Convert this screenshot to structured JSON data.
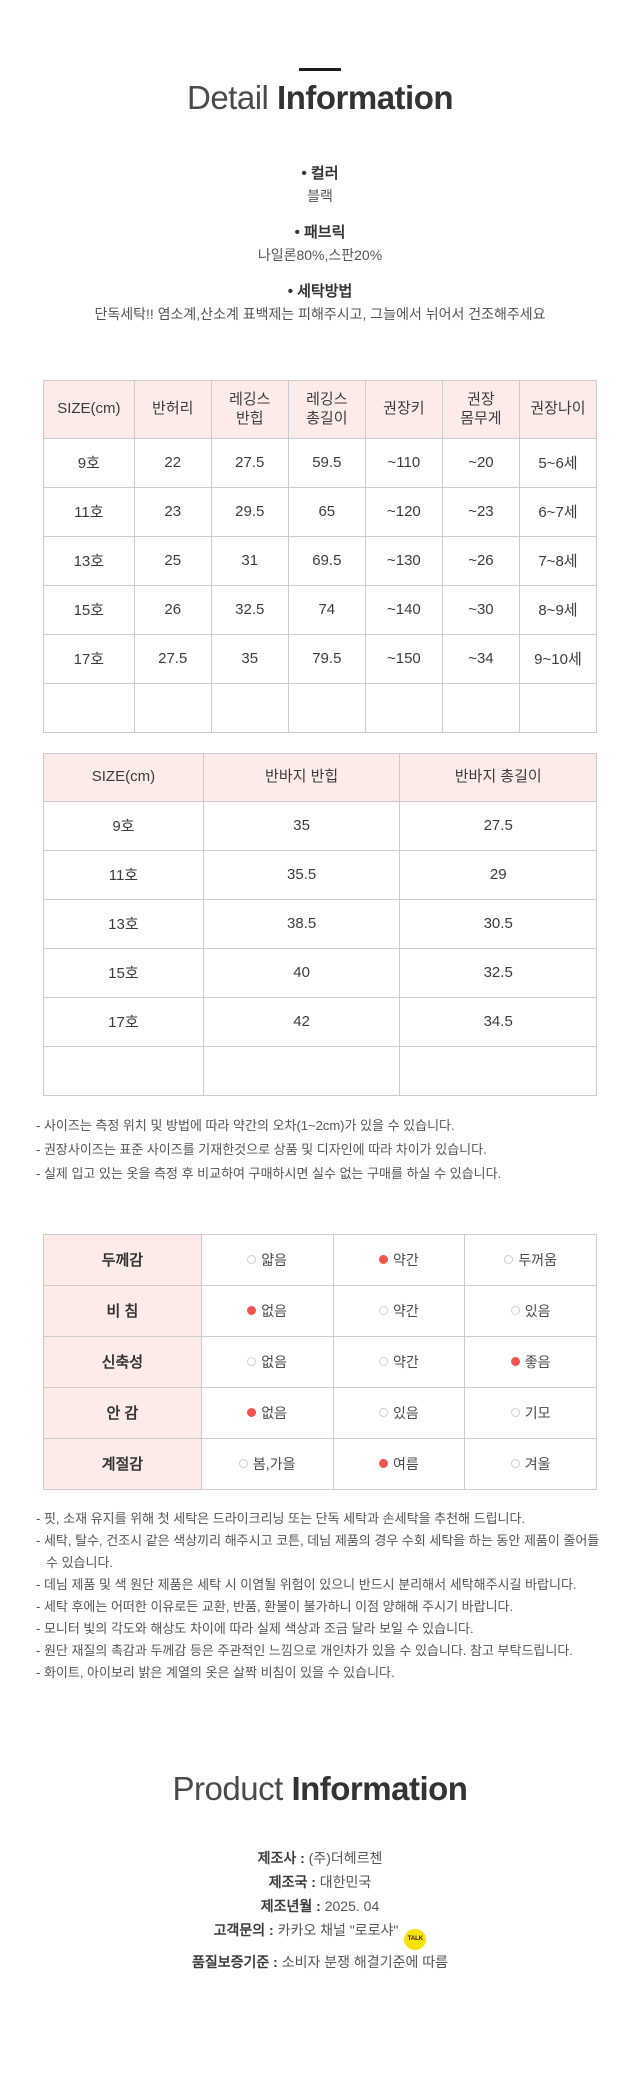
{
  "page": {
    "detail_title": {
      "light": "Detail",
      "bold": "Information"
    },
    "product_title": {
      "light": "Product",
      "bold": "Information"
    }
  },
  "detail_sections": [
    {
      "label": "• 컬러",
      "value": "블랙"
    },
    {
      "label": "• 패브릭",
      "value": "나일론80%,스판20%"
    },
    {
      "label": "• 세탁방법",
      "value": "단독세탁!! 염소계,산소계 표백제는 피해주시고, 그늘에서 뉘어서 건조해주세요"
    }
  ],
  "leggings_size_table": {
    "headers": [
      "SIZE(cm)",
      "반허리",
      "레깅스\n반힙",
      "레깅스\n총길이",
      "권장키",
      "권장\n몸무게",
      "권장나이"
    ],
    "rows": [
      [
        "9호",
        "22",
        "27.5",
        "59.5",
        "~110",
        "~20",
        "5~6세"
      ],
      [
        "11호",
        "23",
        "29.5",
        "65",
        "~120",
        "~23",
        "6~7세"
      ],
      [
        "13호",
        "25",
        "31",
        "69.5",
        "~130",
        "~26",
        "7~8세"
      ],
      [
        "15호",
        "26",
        "32.5",
        "74",
        "~140",
        "~30",
        "8~9세"
      ],
      [
        "17호",
        "27.5",
        "35",
        "79.5",
        "~150",
        "~34",
        "9~10세"
      ],
      [
        "",
        "",
        "",
        "",
        "",
        "",
        ""
      ]
    ]
  },
  "shorts_size_table": {
    "headers": [
      "SIZE(cm)",
      "반바지 반힙",
      "반바지 총길이"
    ],
    "rows": [
      [
        "9호",
        "35",
        "27.5"
      ],
      [
        "11호",
        "35.5",
        "29"
      ],
      [
        "13호",
        "38.5",
        "30.5"
      ],
      [
        "15호",
        "40",
        "32.5"
      ],
      [
        "17호",
        "42",
        "34.5"
      ],
      [
        "",
        "",
        ""
      ]
    ]
  },
  "size_notes": [
    "- 사이즈는 측정 위치 및 방법에 따라 약간의 오차(1~2cm)가 있을 수 있습니다.",
    "- 권장사이즈는 표준 사이즈를 기재한것으로 상품 및 디자인에 따라 차이가 있습니다.",
    "- 실제 입고 있는 옷을 측정 후 비교하여 구매하시면 실수 없는 구매를 하실 수 있습니다."
  ],
  "fabric_spec_table": {
    "rows": [
      {
        "label": "두께감",
        "options": [
          {
            "text": "얇음",
            "selected": false
          },
          {
            "text": "약간",
            "selected": true
          },
          {
            "text": "두꺼움",
            "selected": false
          }
        ]
      },
      {
        "label": "비 침",
        "options": [
          {
            "text": "없음",
            "selected": true
          },
          {
            "text": "약간",
            "selected": false
          },
          {
            "text": "있음",
            "selected": false
          }
        ]
      },
      {
        "label": "신축성",
        "options": [
          {
            "text": "없음",
            "selected": false
          },
          {
            "text": "약간",
            "selected": false
          },
          {
            "text": "좋음",
            "selected": true
          }
        ]
      },
      {
        "label": "안 감",
        "options": [
          {
            "text": "없음",
            "selected": true
          },
          {
            "text": "있음",
            "selected": false
          },
          {
            "text": "기모",
            "selected": false
          }
        ]
      },
      {
        "label": "계절감",
        "options": [
          {
            "text": "봄,가을",
            "selected": false
          },
          {
            "text": "여름",
            "selected": true
          },
          {
            "text": "겨울",
            "selected": false
          }
        ]
      }
    ]
  },
  "care_notes": [
    "- 핏, 소재 유지를 위해 첫 세탁은 드라이크리닝 또는 단독 세탁과 손세탁을 추천해 드립니다.",
    "- 세탁, 탈수, 건조시 같은 색상끼리 해주시고 코튼, 데님 제품의 경우 수회 세탁을 하는 동안 제품이 줄어들 수 있습니다.",
    "- 데님 제품 및 색 원단 제품은 세탁 시 이염될 위험이 있으니 반드시 분리해서 세탁해주시길 바랍니다.",
    "- 세탁 후에는 어떠한 이유로든 교환, 반품, 환불이 불가하니 이점 양해해 주시기 바랍니다.",
    "- 모니터 빛의 각도와 해상도 차이에 따라 실제 색상과 조금 달라 보일 수 있습니다.",
    "- 원단 재질의 촉감과 두께감 등은 주관적인 느낌으로 개인차가 있을 수 있습니다. 참고 부탁드립니다.",
    "- 화이트, 아이보리 밝은 계열의 옷은 살짝 비침이 있을 수 있습니다."
  ],
  "product_info": {
    "items": [
      {
        "label": "제조사 :",
        "value": "(주)더헤르첸"
      },
      {
        "label": "제조국 :",
        "value": "대한민국"
      },
      {
        "label": "제조년월 :",
        "value": "2025. 04"
      },
      {
        "label": "고객문의 :",
        "value": "카카오 채널 \"로로샤\"",
        "icon": "kakao-talk-icon"
      },
      {
        "label": "품질보증기준 :",
        "value": "소비자 분쟁 해결기준에 따름"
      }
    ],
    "kakao_icon_text": "TALK"
  },
  "colors": {
    "header_pink": "#fdebe9",
    "table_border": "#cccccc",
    "accent_red": "#f4544e",
    "kakao_yellow": "#fae100"
  }
}
